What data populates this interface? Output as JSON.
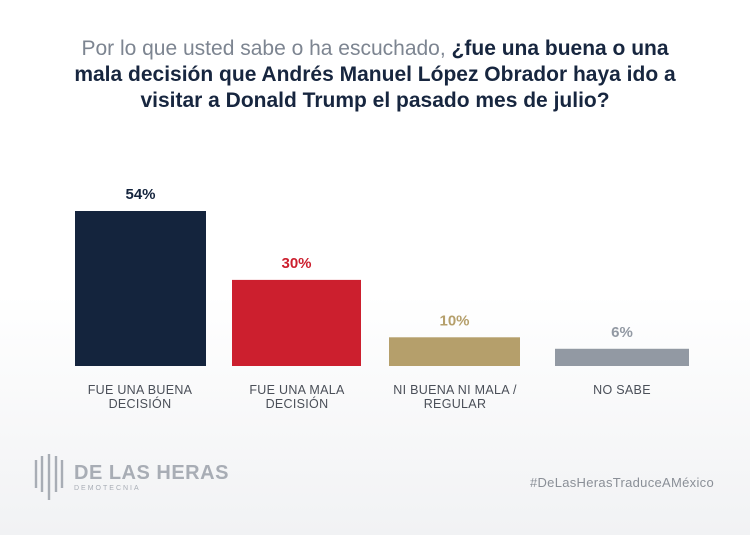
{
  "title": {
    "lead": "Por lo que usted sabe o ha escuchado, ",
    "question": "¿fue una buena o una mala decisión que Andrés Manuel López Obrador haya ido a visitar a Donald Trump el pasado mes de julio?"
  },
  "chart_data": {
    "type": "bar",
    "categories": [
      "FUE UNA BUENA DECISIÓN",
      "FUE UNA MALA DECISIÓN",
      "NI BUENA NI MALA / REGULAR",
      "NO SABE"
    ],
    "values": [
      54,
      30,
      10,
      6
    ],
    "value_labels": [
      "54%",
      "30%",
      "10%",
      "6%"
    ],
    "colors": [
      "#14243d",
      "#cc1f2e",
      "#b59f6b",
      "#9299a3"
    ],
    "label_colors": [
      "#14243d",
      "#cc1f2e",
      "#b59f6b",
      "#9299a3"
    ],
    "ylim": [
      0,
      54
    ],
    "grid": false
  },
  "footer": {
    "logo_name": "DE LAS HERAS",
    "logo_sub": "DEMOTECNIA",
    "hashtag": "#DeLasHerasTraduceAMéxico"
  }
}
